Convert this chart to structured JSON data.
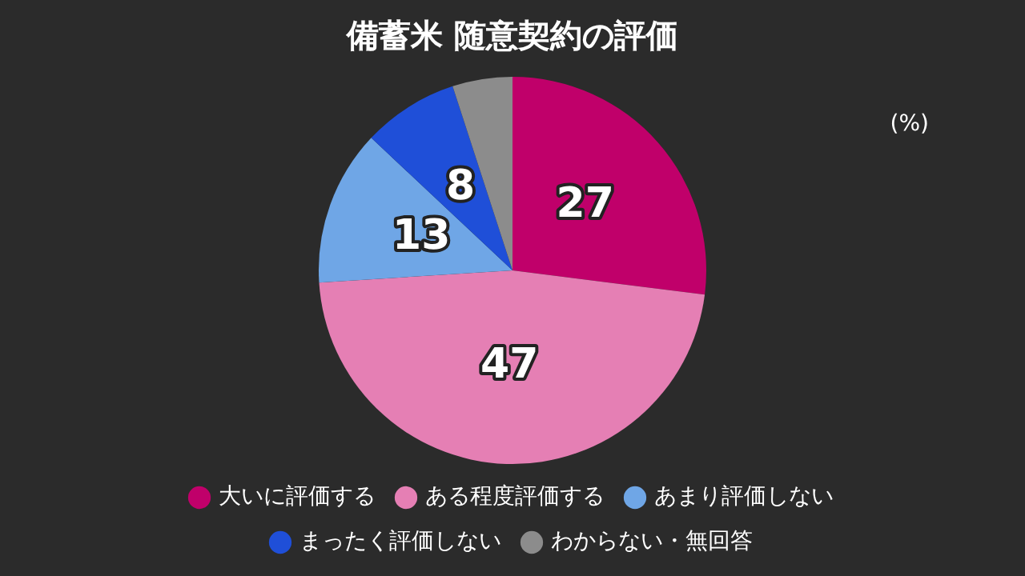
{
  "chart_data": {
    "type": "pie",
    "title": "備蓄米 随意契約の評価",
    "annotations": [
      "(%)"
    ],
    "categories": [
      "大いに評価する",
      "ある程度評価する",
      "あまり評価しない",
      "まったく評価しない",
      "わからない・無回答"
    ],
    "values": [
      27,
      47,
      13,
      8,
      5
    ],
    "value_labels": [
      "27",
      "47",
      "13",
      "8",
      null
    ],
    "colors": [
      "#c0006a",
      "#e57fb4",
      "#6fa6e6",
      "#1f4fd8",
      "#8c8c8c"
    ],
    "legend": "bottom"
  }
}
